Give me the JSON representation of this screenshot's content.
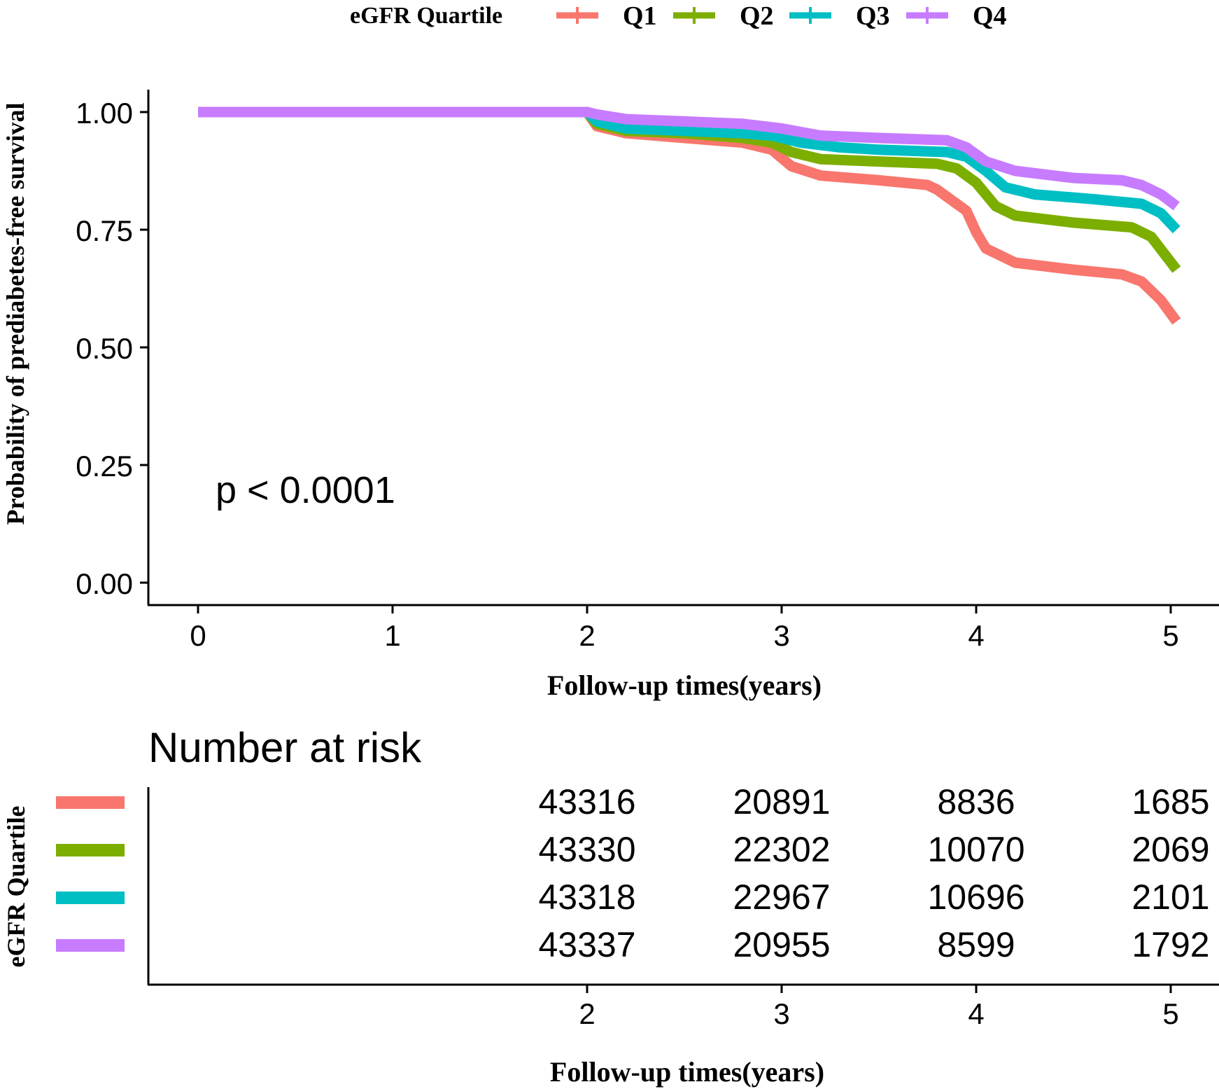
{
  "chart_data": [
    {
      "type": "line",
      "subtype": "kaplan-meier",
      "xlabel": "Follow-up times(years)",
      "ylabel": "Probability of prediabetes-free survival",
      "xlim": [
        0,
        5
      ],
      "ylim": [
        0,
        1
      ],
      "x_ticks": [
        "0",
        "1",
        "2",
        "3",
        "4",
        "5"
      ],
      "y_ticks": [
        "0.00",
        "0.25",
        "0.50",
        "0.75",
        "1.00"
      ],
      "annotation": "p < 0.0001",
      "legend": {
        "title": "eGFR Quartile",
        "position": "top",
        "entries": [
          "Q1",
          "Q2",
          "Q3",
          "Q4"
        ]
      },
      "series": [
        {
          "name": "Q1",
          "color": "#F8766D",
          "points": [
            [
              0,
              1
            ],
            [
              2,
              1
            ],
            [
              2.05,
              0.97
            ],
            [
              2.2,
              0.955
            ],
            [
              2.5,
              0.945
            ],
            [
              2.8,
              0.935
            ],
            [
              2.95,
              0.92
            ],
            [
              3.05,
              0.885
            ],
            [
              3.2,
              0.865
            ],
            [
              3.5,
              0.855
            ],
            [
              3.75,
              0.845
            ],
            [
              3.8,
              0.835
            ],
            [
              3.85,
              0.82
            ],
            [
              3.95,
              0.79
            ],
            [
              4.0,
              0.745
            ],
            [
              4.05,
              0.71
            ],
            [
              4.2,
              0.68
            ],
            [
              4.5,
              0.665
            ],
            [
              4.75,
              0.655
            ],
            [
              4.85,
              0.64
            ],
            [
              4.95,
              0.6
            ],
            [
              5.03,
              0.555
            ]
          ]
        },
        {
          "name": "Q2",
          "color": "#7CAE00",
          "points": [
            [
              0,
              1
            ],
            [
              2,
              1
            ],
            [
              2.05,
              0.975
            ],
            [
              2.2,
              0.96
            ],
            [
              2.5,
              0.955
            ],
            [
              2.8,
              0.945
            ],
            [
              2.95,
              0.935
            ],
            [
              3.05,
              0.915
            ],
            [
              3.2,
              0.9
            ],
            [
              3.5,
              0.895
            ],
            [
              3.8,
              0.89
            ],
            [
              3.9,
              0.88
            ],
            [
              4.0,
              0.85
            ],
            [
              4.1,
              0.8
            ],
            [
              4.2,
              0.78
            ],
            [
              4.5,
              0.765
            ],
            [
              4.8,
              0.755
            ],
            [
              4.9,
              0.735
            ],
            [
              5.03,
              0.665
            ]
          ]
        },
        {
          "name": "Q3",
          "color": "#00BFC4",
          "points": [
            [
              0,
              1
            ],
            [
              2,
              1
            ],
            [
              2.05,
              0.98
            ],
            [
              2.2,
              0.965
            ],
            [
              2.5,
              0.96
            ],
            [
              2.8,
              0.955
            ],
            [
              2.95,
              0.95
            ],
            [
              3.1,
              0.935
            ],
            [
              3.3,
              0.925
            ],
            [
              3.5,
              0.92
            ],
            [
              3.85,
              0.915
            ],
            [
              3.95,
              0.905
            ],
            [
              4.05,
              0.875
            ],
            [
              4.15,
              0.84
            ],
            [
              4.3,
              0.825
            ],
            [
              4.6,
              0.815
            ],
            [
              4.85,
              0.805
            ],
            [
              4.95,
              0.785
            ],
            [
              5.03,
              0.75
            ]
          ]
        },
        {
          "name": "Q4",
          "color": "#C77CFF",
          "points": [
            [
              0,
              1
            ],
            [
              2,
              1
            ],
            [
              2.05,
              0.995
            ],
            [
              2.2,
              0.985
            ],
            [
              2.5,
              0.98
            ],
            [
              2.8,
              0.975
            ],
            [
              3.0,
              0.965
            ],
            [
              3.2,
              0.95
            ],
            [
              3.5,
              0.945
            ],
            [
              3.85,
              0.94
            ],
            [
              3.95,
              0.925
            ],
            [
              4.05,
              0.895
            ],
            [
              4.2,
              0.875
            ],
            [
              4.5,
              0.86
            ],
            [
              4.75,
              0.855
            ],
            [
              4.85,
              0.845
            ],
            [
              4.95,
              0.825
            ],
            [
              5.03,
              0.8
            ]
          ]
        }
      ]
    },
    {
      "type": "table",
      "title": "Number at risk",
      "ylabel": "eGFR Quartile",
      "xlabel": "Follow-up times(years)",
      "x_ticks": [
        "2",
        "3",
        "4",
        "5"
      ],
      "rows": [
        {
          "name": "Q1",
          "color": "#F8766D",
          "values": [
            "43316",
            "20891",
            "8836",
            "1685"
          ]
        },
        {
          "name": "Q2",
          "color": "#7CAE00",
          "values": [
            "43330",
            "22302",
            "10070",
            "2069"
          ]
        },
        {
          "name": "Q3",
          "color": "#00BFC4",
          "values": [
            "43318",
            "22967",
            "10696",
            "2101"
          ]
        },
        {
          "name": "Q4",
          "color": "#C77CFF",
          "values": [
            "43337",
            "20955",
            "8599",
            "1792"
          ]
        }
      ]
    }
  ]
}
